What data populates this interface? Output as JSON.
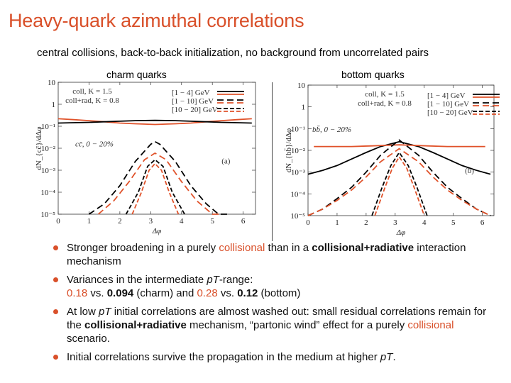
{
  "slide": {
    "title": "Heavy-quark azimuthal correlations",
    "subtitle": "central collisions, back-to-back initialization, no background from uncorrelated pairs"
  },
  "colors": {
    "accent": "#d9502a",
    "coll": "#e0522a",
    "collrad": "#000000",
    "text": "#111111"
  },
  "chart_data": [
    {
      "type": "line",
      "title": "charm quarks",
      "xlabel": "Δφ",
      "ylabel": "dN_{cc̄}/dΔφ",
      "xlim": [
        0,
        6.4
      ],
      "ylim_log10": [
        -5,
        1
      ],
      "xticks": [
        "0",
        "1",
        "2",
        "3",
        "4",
        "5",
        "6"
      ],
      "yticks": [
        "10",
        "1",
        "10⁻¹",
        "10⁻²",
        "10⁻³",
        "10⁻⁴",
        "10⁻⁵"
      ],
      "legend": {
        "models": [
          "coll, K = 1.5",
          "coll+rad, K = 0.8"
        ],
        "pt_bins": [
          "[1 − 4] GeV",
          "[1 − 10] GeV",
          "[10 − 20] GeV"
        ]
      },
      "annotations": [
        "cc̄, 0 − 20%",
        "(a)"
      ],
      "series": [
        {
          "model": "coll",
          "pt_bin": "[1 − 4] GeV",
          "color": "#e0522a",
          "dash": "solid",
          "x": [
            0,
            0.5,
            1,
            1.5,
            2,
            2.5,
            3.14,
            3.8,
            4.3,
            4.8,
            5.3,
            5.8,
            6.28
          ],
          "y": [
            0.22,
            0.2,
            0.18,
            0.16,
            0.14,
            0.13,
            0.12,
            0.13,
            0.14,
            0.16,
            0.18,
            0.2,
            0.22
          ]
        },
        {
          "model": "coll+rad",
          "pt_bin": "[1 − 4] GeV",
          "color": "#000000",
          "dash": "solid",
          "x": [
            0,
            0.5,
            1,
            1.5,
            2,
            2.5,
            3.14,
            3.8,
            4.3,
            4.8,
            5.3,
            5.8,
            6.28
          ],
          "y": [
            0.14,
            0.145,
            0.15,
            0.16,
            0.17,
            0.18,
            0.185,
            0.18,
            0.17,
            0.16,
            0.15,
            0.145,
            0.14
          ]
        },
        {
          "model": "coll+rad",
          "pt_bin": "[1 − 10] GeV",
          "color": "#000000",
          "dash": "dash",
          "x": [
            1.0,
            1.5,
            2.0,
            2.5,
            3.0,
            3.14,
            3.3,
            3.8,
            4.3,
            4.8,
            5.2,
            5.5
          ],
          "y": [
            1e-05,
            3e-05,
            0.0002,
            0.0025,
            0.015,
            0.02,
            0.015,
            0.0025,
            0.0002,
            3e-05,
            1e-05,
            1e-05
          ]
        },
        {
          "model": "coll",
          "pt_bin": "[1 − 10] GeV",
          "color": "#e0522a",
          "dash": "dash",
          "x": [
            1.3,
            1.8,
            2.3,
            2.8,
            3.14,
            3.5,
            4.0,
            4.5,
            5.0,
            5.3
          ],
          "y": [
            1e-05,
            4e-05,
            0.0003,
            0.003,
            0.006,
            0.003,
            0.0003,
            4e-05,
            1e-05,
            1e-05
          ]
        },
        {
          "model": "coll+rad",
          "pt_bin": "[10 − 20] GeV",
          "color": "#000000",
          "dash": "dashdot",
          "x": [
            2.2,
            2.6,
            2.9,
            3.14,
            3.4,
            3.7,
            4.1
          ],
          "y": [
            1e-05,
            0.0001,
            0.0015,
            0.003,
            0.0015,
            0.0001,
            1e-05
          ]
        },
        {
          "model": "coll",
          "pt_bin": "[10 − 20] GeV",
          "color": "#e0522a",
          "dash": "dashdot",
          "x": [
            2.4,
            2.7,
            2.95,
            3.14,
            3.35,
            3.6,
            3.9
          ],
          "y": [
            1e-05,
            0.0001,
            0.001,
            0.002,
            0.001,
            0.0001,
            1e-05
          ]
        }
      ]
    },
    {
      "type": "line",
      "title": "bottom quarks",
      "xlabel": "Δφ",
      "ylabel": "dN_{bb̄}/dΔφ",
      "xlim": [
        0,
        6.4
      ],
      "ylim_log10": [
        -5,
        1
      ],
      "xticks": [
        "0",
        "1",
        "2",
        "3",
        "4",
        "5",
        "6"
      ],
      "yticks": [
        "10",
        "1",
        "10⁻¹",
        "10⁻²",
        "10⁻³",
        "10⁻⁴",
        "10⁻⁵"
      ],
      "legend": {
        "models": [
          "coll, K = 1.5",
          "coll+rad, K = 0.8"
        ],
        "pt_bins": [
          "[1 − 4] GeV",
          "[1 − 10] GeV",
          "[10 − 20] GeV"
        ]
      },
      "annotations": [
        "bb̄, 0 − 20%",
        "(b)"
      ],
      "series": [
        {
          "model": "coll+rad",
          "pt_bin": "[1 − 4] GeV",
          "color": "#000000",
          "dash": "solid",
          "x": [
            0,
            0.5,
            1,
            1.5,
            2,
            2.5,
            3.14,
            3.8,
            4.3,
            4.8,
            5.3,
            5.8,
            6.28
          ],
          "y": [
            0.0008,
            0.0012,
            0.002,
            0.004,
            0.008,
            0.015,
            0.025,
            0.015,
            0.008,
            0.004,
            0.002,
            0.0012,
            0.0008
          ]
        },
        {
          "model": "coll",
          "pt_bin": "[1 − 4] GeV",
          "color": "#e0522a",
          "dash": "solid",
          "x": [
            0.2,
            0.8,
            1.5,
            2.2,
            2.7,
            3.14,
            3.6,
            4.1,
            4.8,
            5.5,
            6.1
          ],
          "y": [
            0.015,
            0.015,
            0.015,
            0.016,
            0.017,
            0.018,
            0.017,
            0.016,
            0.015,
            0.015,
            0.015
          ]
        },
        {
          "model": "coll+rad",
          "pt_bin": "[1 − 10] GeV",
          "color": "#000000",
          "dash": "dash",
          "x": [
            0,
            0.5,
            1,
            1.5,
            2,
            2.5,
            3.14,
            3.8,
            4.3,
            4.8,
            5.3,
            5.8,
            6.28
          ],
          "y": [
            1e-05,
            2e-05,
            6e-05,
            0.0002,
            0.001,
            0.006,
            0.03,
            0.006,
            0.001,
            0.0002,
            6e-05,
            2e-05,
            1e-05
          ]
        },
        {
          "model": "coll",
          "pt_bin": "[1 − 10] GeV",
          "color": "#e0522a",
          "dash": "dash",
          "x": [
            0,
            0.5,
            1,
            1.5,
            2,
            2.5,
            3.14,
            3.8,
            4.3,
            4.8,
            5.3,
            5.8,
            6.28
          ],
          "y": [
            1e-05,
            2e-05,
            5e-05,
            0.00015,
            0.0006,
            0.003,
            0.012,
            0.003,
            0.0006,
            0.00015,
            5e-05,
            2e-05,
            1e-05
          ]
        },
        {
          "model": "coll+rad",
          "pt_bin": "[10 − 20] GeV",
          "color": "#000000",
          "dash": "dashdot",
          "x": [
            2.2,
            2.55,
            2.85,
            3.14,
            3.45,
            3.75,
            4.1
          ],
          "y": [
            1e-05,
            0.0002,
            0.002,
            0.008,
            0.002,
            0.0002,
            1e-05
          ]
        },
        {
          "model": "coll",
          "pt_bin": "[10 − 20] GeV",
          "color": "#e0522a",
          "dash": "dashdot",
          "x": [
            2.3,
            2.65,
            2.9,
            3.14,
            3.4,
            3.65,
            4.0
          ],
          "y": [
            1e-05,
            0.0002,
            0.0015,
            0.005,
            0.0015,
            0.0002,
            1e-05
          ]
        }
      ]
    }
  ],
  "bullets": [
    {
      "parts": [
        {
          "t": "Stronger broadening in a purely "
        },
        {
          "t": "collisional",
          "s": "or"
        },
        {
          "t": " than in a "
        },
        {
          "t": "collisional+radiative",
          "s": "b"
        },
        {
          "t": " interaction mechanism"
        }
      ]
    },
    {
      "parts": [
        {
          "t": "Variances in the intermediate "
        },
        {
          "t": "pT",
          "s": "i"
        },
        {
          "t": "-range:"
        },
        {
          "br": true
        },
        {
          "t": "0.18",
          "s": "or"
        },
        {
          "t": " vs. "
        },
        {
          "t": "0.094",
          "s": "b"
        },
        {
          "t": " (charm) and "
        },
        {
          "t": "0.28",
          "s": "or"
        },
        {
          "t": " vs. "
        },
        {
          "t": "0.12",
          "s": "b"
        },
        {
          "t": " (bottom)"
        }
      ]
    },
    {
      "parts": [
        {
          "t": "At low "
        },
        {
          "t": "pT",
          "s": "i"
        },
        {
          "t": " initial correlations are almost washed out: small residual correlations remain for the "
        },
        {
          "t": "collisional+radiative",
          "s": "b"
        },
        {
          "t": " mechanism, “partonic wind” effect for a purely "
        },
        {
          "t": "collisional",
          "s": "or"
        },
        {
          "t": " scenario."
        }
      ]
    },
    {
      "parts": [
        {
          "t": "Initial correlations survive the propagation in the medium at higher "
        },
        {
          "t": "pT",
          "s": "i"
        },
        {
          "t": "."
        }
      ]
    }
  ]
}
